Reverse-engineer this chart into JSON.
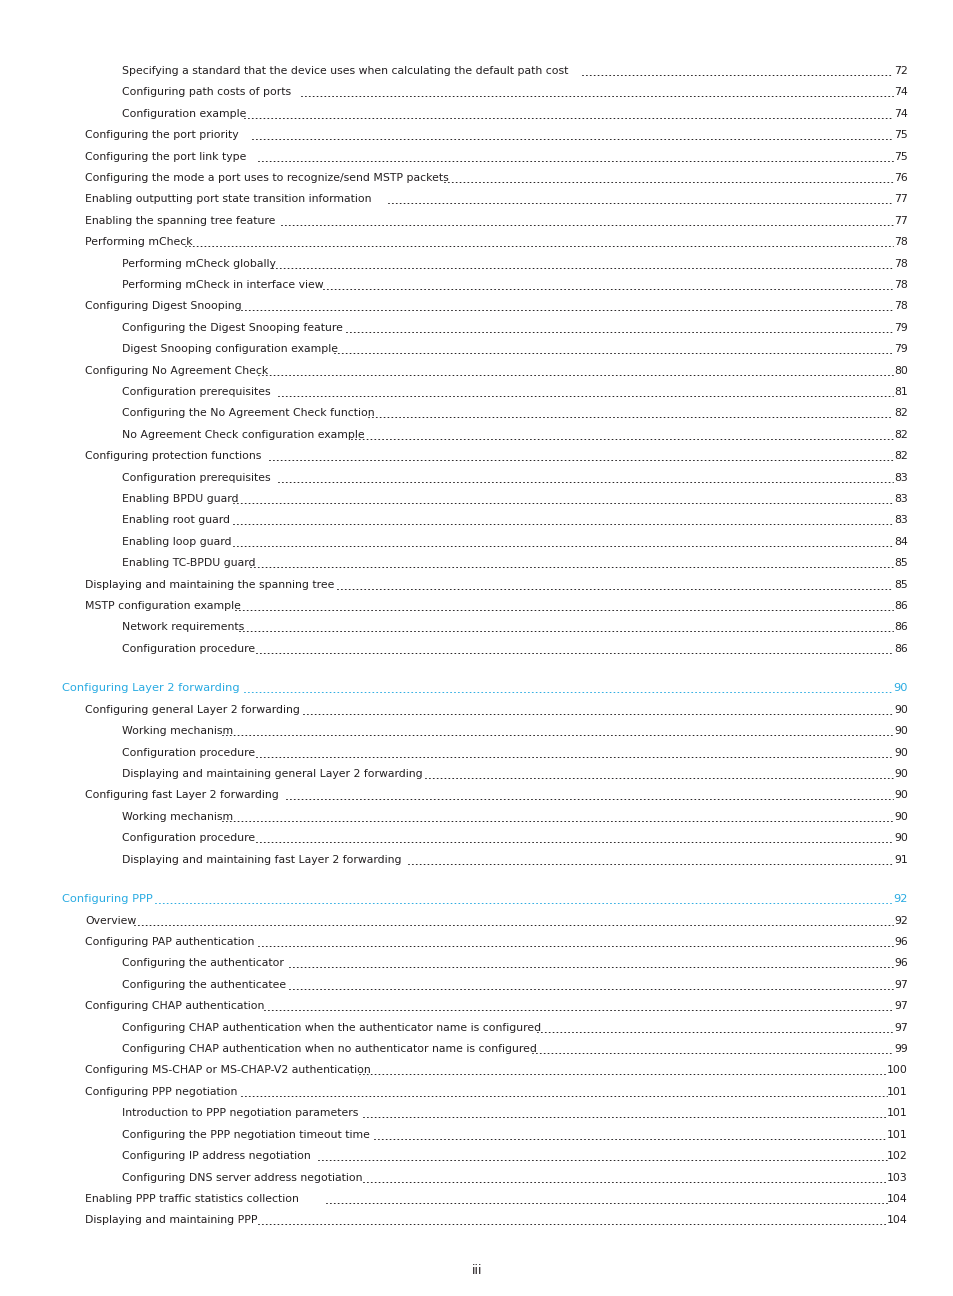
{
  "page_bg": "#ffffff",
  "text_color": "#231f20",
  "cyan_color": "#29abe2",
  "footer_text": "iii",
  "entries": [
    {
      "indent": 2,
      "text": "Specifying a standard that the device uses when calculating the default path cost",
      "page": "72",
      "color": "black"
    },
    {
      "indent": 2,
      "text": "Configuring path costs of ports",
      "page": "74",
      "color": "black"
    },
    {
      "indent": 2,
      "text": "Configuration example",
      "page": "74",
      "color": "black"
    },
    {
      "indent": 1,
      "text": "Configuring the port priority",
      "page": "75",
      "color": "black"
    },
    {
      "indent": 1,
      "text": "Configuring the port link type",
      "page": "75",
      "color": "black"
    },
    {
      "indent": 1,
      "text": "Configuring the mode a port uses to recognize/send MSTP packets",
      "page": "76",
      "color": "black"
    },
    {
      "indent": 1,
      "text": "Enabling outputting port state transition information",
      "page": "77",
      "color": "black"
    },
    {
      "indent": 1,
      "text": "Enabling the spanning tree feature",
      "page": "77",
      "color": "black"
    },
    {
      "indent": 1,
      "text": "Performing mCheck",
      "page": "78",
      "color": "black"
    },
    {
      "indent": 2,
      "text": "Performing mCheck globally",
      "page": "78",
      "color": "black"
    },
    {
      "indent": 2,
      "text": "Performing mCheck in interface view",
      "page": "78",
      "color": "black"
    },
    {
      "indent": 1,
      "text": "Configuring Digest Snooping",
      "page": "78",
      "color": "black"
    },
    {
      "indent": 2,
      "text": "Configuring the Digest Snooping feature",
      "page": "79",
      "color": "black"
    },
    {
      "indent": 2,
      "text": "Digest Snooping configuration example",
      "page": "79",
      "color": "black"
    },
    {
      "indent": 1,
      "text": "Configuring No Agreement Check",
      "page": "80",
      "color": "black"
    },
    {
      "indent": 2,
      "text": "Configuration prerequisites",
      "page": "81",
      "color": "black"
    },
    {
      "indent": 2,
      "text": "Configuring the No Agreement Check function",
      "page": "82",
      "color": "black"
    },
    {
      "indent": 2,
      "text": "No Agreement Check configuration example",
      "page": "82",
      "color": "black"
    },
    {
      "indent": 1,
      "text": "Configuring protection functions",
      "page": "82",
      "color": "black"
    },
    {
      "indent": 2,
      "text": "Configuration prerequisites",
      "page": "83",
      "color": "black"
    },
    {
      "indent": 2,
      "text": "Enabling BPDU guard",
      "page": "83",
      "color": "black"
    },
    {
      "indent": 2,
      "text": "Enabling root guard",
      "page": "83",
      "color": "black"
    },
    {
      "indent": 2,
      "text": "Enabling loop guard",
      "page": "84",
      "color": "black"
    },
    {
      "indent": 2,
      "text": "Enabling TC-BPDU guard",
      "page": "85",
      "color": "black"
    },
    {
      "indent": 1,
      "text": "Displaying and maintaining the spanning tree",
      "page": "85",
      "color": "black"
    },
    {
      "indent": 1,
      "text": "MSTP configuration example",
      "page": "86",
      "color": "black"
    },
    {
      "indent": 2,
      "text": "Network requirements",
      "page": "86",
      "color": "black"
    },
    {
      "indent": 2,
      "text": "Configuration procedure",
      "page": "86",
      "color": "black"
    },
    {
      "indent": 0,
      "text": "Configuring Layer 2 forwarding",
      "page": "90",
      "color": "cyan"
    },
    {
      "indent": 1,
      "text": "Configuring general Layer 2 forwarding",
      "page": "90",
      "color": "black"
    },
    {
      "indent": 2,
      "text": "Working mechanism",
      "page": "90",
      "color": "black"
    },
    {
      "indent": 2,
      "text": "Configuration procedure",
      "page": "90",
      "color": "black"
    },
    {
      "indent": 2,
      "text": "Displaying and maintaining general Layer 2 forwarding",
      "page": "90",
      "color": "black"
    },
    {
      "indent": 1,
      "text": "Configuring fast Layer 2 forwarding",
      "page": "90",
      "color": "black"
    },
    {
      "indent": 2,
      "text": "Working mechanism",
      "page": "90",
      "color": "black"
    },
    {
      "indent": 2,
      "text": "Configuration procedure",
      "page": "90",
      "color": "black"
    },
    {
      "indent": 2,
      "text": "Displaying and maintaining fast Layer 2 forwarding",
      "page": "91",
      "color": "black"
    },
    {
      "indent": 0,
      "text": "Configuring PPP",
      "page": "92",
      "color": "cyan"
    },
    {
      "indent": 1,
      "text": "Overview",
      "page": "92",
      "color": "black"
    },
    {
      "indent": 1,
      "text": "Configuring PAP authentication",
      "page": "96",
      "color": "black"
    },
    {
      "indent": 2,
      "text": "Configuring the authenticator",
      "page": "96",
      "color": "black"
    },
    {
      "indent": 2,
      "text": "Configuring the authenticatee",
      "page": "97",
      "color": "black"
    },
    {
      "indent": 1,
      "text": "Configuring CHAP authentication",
      "page": "97",
      "color": "black"
    },
    {
      "indent": 2,
      "text": "Configuring CHAP authentication when the authenticator name is configured",
      "page": "97",
      "color": "black"
    },
    {
      "indent": 2,
      "text": "Configuring CHAP authentication when no authenticator name is configured",
      "page": "99",
      "color": "black"
    },
    {
      "indent": 1,
      "text": "Configuring MS-CHAP or MS-CHAP-V2 authentication",
      "page": "100",
      "color": "black"
    },
    {
      "indent": 1,
      "text": "Configuring PPP negotiation",
      "page": "101",
      "color": "black"
    },
    {
      "indent": 2,
      "text": "Introduction to PPP negotiation parameters",
      "page": "101",
      "color": "black"
    },
    {
      "indent": 2,
      "text": "Configuring the PPP negotiation timeout time",
      "page": "101",
      "color": "black"
    },
    {
      "indent": 2,
      "text": "Configuring IP address negotiation",
      "page": "102",
      "color": "black"
    },
    {
      "indent": 2,
      "text": "Configuring DNS server address negotiation",
      "page": "103",
      "color": "black"
    },
    {
      "indent": 1,
      "text": "Enabling PPP traffic statistics collection",
      "page": "104",
      "color": "black"
    },
    {
      "indent": 1,
      "text": "Displaying and maintaining PPP",
      "page": "104",
      "color": "black"
    }
  ]
}
